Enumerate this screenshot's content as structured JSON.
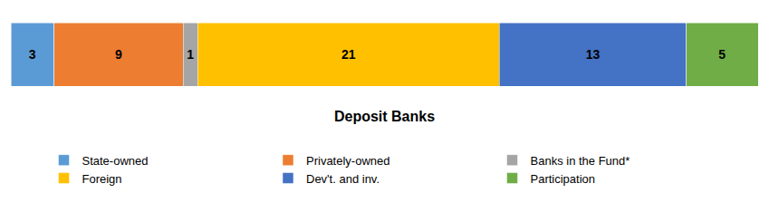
{
  "chart_data": {
    "type": "bar",
    "orientation": "horizontal",
    "stacked": true,
    "title": "Deposit Banks",
    "categories": [
      null
    ],
    "series": [
      {
        "name": "State-owned",
        "color": "#5B9BD5",
        "values": [
          3
        ]
      },
      {
        "name": "Privately-owned",
        "color": "#ED7D31",
        "values": [
          9
        ]
      },
      {
        "name": "Banks in the Fund*",
        "color": "#A5A5A5",
        "values": [
          1
        ]
      },
      {
        "name": "Foreign",
        "color": "#FFC000",
        "values": [
          21
        ]
      },
      {
        "name": "Dev't. and inv.",
        "color": "#4472C4",
        "values": [
          13
        ]
      },
      {
        "name": "Participation",
        "color": "#70AD47",
        "values": [
          5
        ]
      }
    ],
    "xlim": [
      0,
      52
    ],
    "data_labels": true,
    "tick_labels": false,
    "grid": false,
    "legend": "bottom"
  }
}
